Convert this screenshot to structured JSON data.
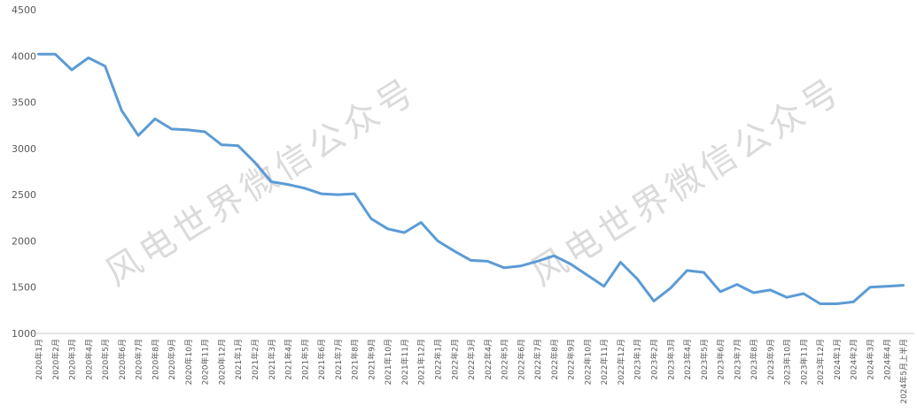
{
  "chart_data": {
    "type": "line",
    "title": "",
    "xlabel": "",
    "ylabel": "",
    "legend": "none",
    "grid": false,
    "ylim": [
      1000,
      4500
    ],
    "yticks": [
      4500,
      4000,
      3500,
      3000,
      2500,
      2000,
      1500,
      1000
    ],
    "x": [
      "2020年1月",
      "2020年2月",
      "2020年3月",
      "2020年4月",
      "2020年5月",
      "2020年6月",
      "2020年7月",
      "2020年8月",
      "2020年9月",
      "2020年10月",
      "2020年11月",
      "2020年12月",
      "2021年1月",
      "2021年2月",
      "2021年3月",
      "2021年4月",
      "2021年5月",
      "2021年6月",
      "2021年7月",
      "2021年8月",
      "2021年9月",
      "2021年10月",
      "2021年11月",
      "2021年12月",
      "2022年1月",
      "2022年2月",
      "2022年3月",
      "2022年4月",
      "2022年5月",
      "2022年6月",
      "2022年7月",
      "2022年8月",
      "2022年9月",
      "2022年10月",
      "2022年11月",
      "2022年12月",
      "2023年1月",
      "2023年2月",
      "2023年3月",
      "2023年4月",
      "2023年5月",
      "2023年6月",
      "2023年7月",
      "2023年8月",
      "2023年9月",
      "2023年10月",
      "2023年11月",
      "2023年12月",
      "2024年1月",
      "2024年2月",
      "2024年3月",
      "2024年4月",
      "2024年5月上半月"
    ],
    "values": [
      4020,
      4020,
      3850,
      3980,
      3890,
      3410,
      3140,
      3320,
      3210,
      3200,
      3180,
      3040,
      3030,
      2850,
      2640,
      2610,
      2570,
      2510,
      2500,
      2510,
      2240,
      2130,
      2090,
      2200,
      2000,
      1890,
      1790,
      1780,
      1710,
      1730,
      1780,
      1840,
      1750,
      1630,
      1510,
      1770,
      1590,
      1350,
      1490,
      1680,
      1660,
      1450,
      1530,
      1440,
      1470,
      1390,
      1430,
      1320,
      1320,
      1340,
      1500,
      1510,
      1520
    ]
  },
  "watermark": {
    "text": "风电世界微信公众号"
  },
  "colors": {
    "line": "#5B9BD5",
    "axis_line": "#C9C9C9",
    "tick_label": "#595959",
    "watermark": "#DBDBDB"
  }
}
